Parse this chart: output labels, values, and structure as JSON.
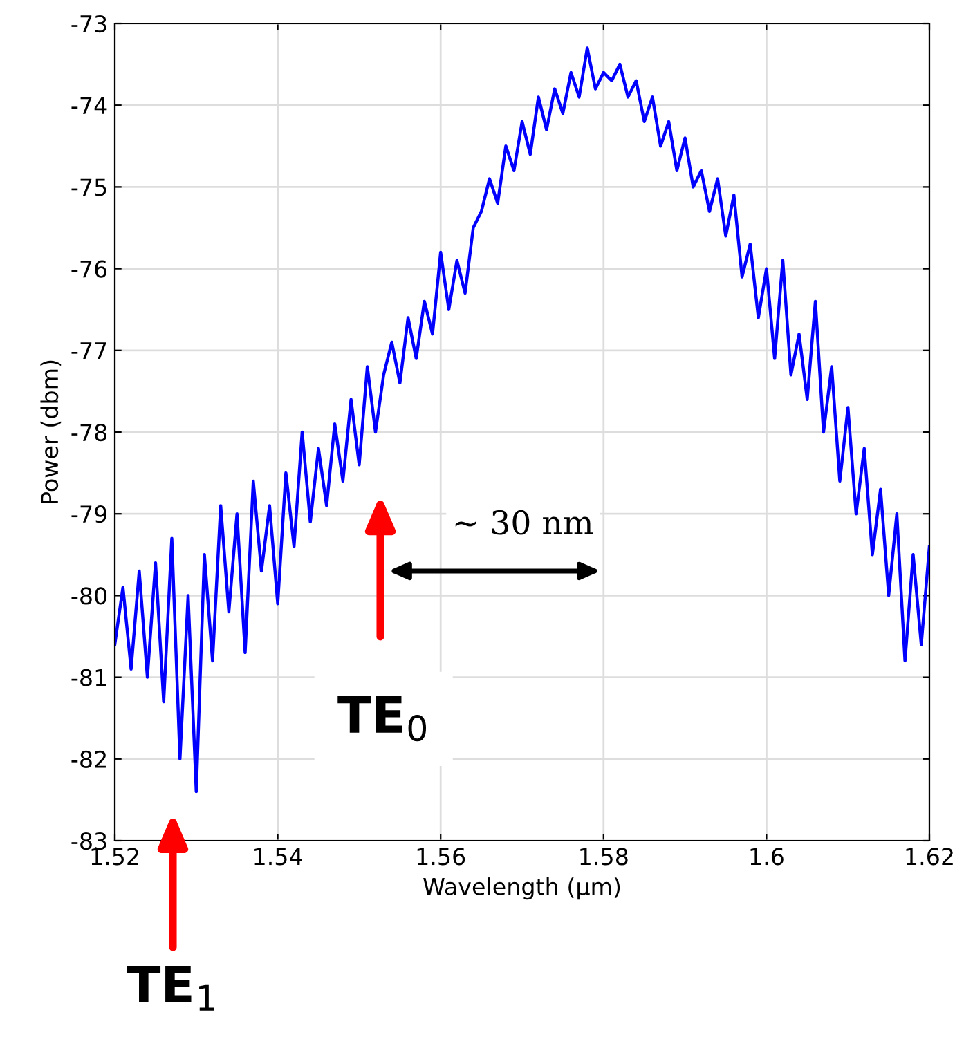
{
  "chart_data": {
    "type": "line",
    "xlabel": "Wavelength (µm)",
    "ylabel": "Power (dbm)",
    "xlim": [
      1.52,
      1.62
    ],
    "xticks": [
      1.52,
      1.54,
      1.56,
      1.58,
      {
        "value": 1.6,
        "label": "1.6"
      },
      1.62
    ],
    "ylim": [
      -83,
      -73
    ],
    "yticks": [
      -83,
      -82,
      -81,
      -80,
      -79,
      -78,
      -77,
      -76,
      -75,
      -74,
      -73
    ],
    "grid": true,
    "legend": false,
    "marker": "none",
    "line_style": "solid",
    "x": [
      1.52,
      1.521,
      1.522,
      1.523,
      1.524,
      1.525,
      1.526,
      1.527,
      1.528,
      1.529,
      1.53,
      1.531,
      1.532,
      1.533,
      1.534,
      1.535,
      1.536,
      1.537,
      1.538,
      1.539,
      1.54,
      1.541,
      1.542,
      1.543,
      1.544,
      1.545,
      1.546,
      1.547,
      1.548,
      1.549,
      1.55,
      1.551,
      1.552,
      1.553,
      1.554,
      1.555,
      1.556,
      1.557,
      1.558,
      1.559,
      1.56,
      1.561,
      1.562,
      1.563,
      1.564,
      1.565,
      1.566,
      1.567,
      1.568,
      1.569,
      1.57,
      1.571,
      1.572,
      1.573,
      1.574,
      1.575,
      1.576,
      1.577,
      1.578,
      1.579,
      1.58,
      1.581,
      1.582,
      1.583,
      1.584,
      1.585,
      1.586,
      1.587,
      1.588,
      1.589,
      1.59,
      1.591,
      1.592,
      1.593,
      1.594,
      1.595,
      1.596,
      1.597,
      1.598,
      1.599,
      1.6,
      1.601,
      1.602,
      1.603,
      1.604,
      1.605,
      1.606,
      1.607,
      1.608,
      1.609,
      1.61,
      1.611,
      1.612,
      1.613,
      1.614,
      1.615,
      1.616,
      1.617,
      1.618,
      1.619,
      1.62
    ],
    "series": [
      {
        "color": "#0000ff",
        "values": [
          -80.6,
          -79.9,
          -80.9,
          -79.7,
          -81.0,
          -79.6,
          -81.3,
          -79.3,
          -82.0,
          -80.0,
          -82.4,
          -79.5,
          -80.8,
          -78.9,
          -80.2,
          -79.0,
          -80.7,
          -78.6,
          -79.7,
          -78.9,
          -80.1,
          -78.5,
          -79.4,
          -78.0,
          -79.1,
          -78.2,
          -78.9,
          -77.9,
          -78.6,
          -77.6,
          -78.4,
          -77.2,
          -78.0,
          -77.3,
          -76.9,
          -77.4,
          -76.6,
          -77.1,
          -76.4,
          -76.8,
          -75.8,
          -76.5,
          -75.9,
          -76.3,
          -75.5,
          -75.3,
          -74.9,
          -75.2,
          -74.5,
          -74.8,
          -74.2,
          -74.6,
          -73.9,
          -74.3,
          -73.8,
          -74.1,
          -73.6,
          -73.9,
          -73.3,
          -73.8,
          -73.6,
          -73.7,
          -73.5,
          -73.9,
          -73.7,
          -74.2,
          -73.9,
          -74.5,
          -74.2,
          -74.8,
          -74.4,
          -75.0,
          -74.8,
          -75.3,
          -74.9,
          -75.6,
          -75.1,
          -76.1,
          -75.7,
          -76.6,
          -76.0,
          -77.1,
          -75.9,
          -77.3,
          -76.8,
          -77.6,
          -76.4,
          -78.0,
          -77.2,
          -78.6,
          -77.7,
          -79.0,
          -78.2,
          -79.5,
          -78.7,
          -80.0,
          -79.0,
          -80.8,
          -79.5,
          -80.6,
          -79.4
        ]
      }
    ],
    "annotations": [
      "TE$_{0}$",
      "TE$_{1}$",
      "~ 30 nm"
    ]
  }
}
